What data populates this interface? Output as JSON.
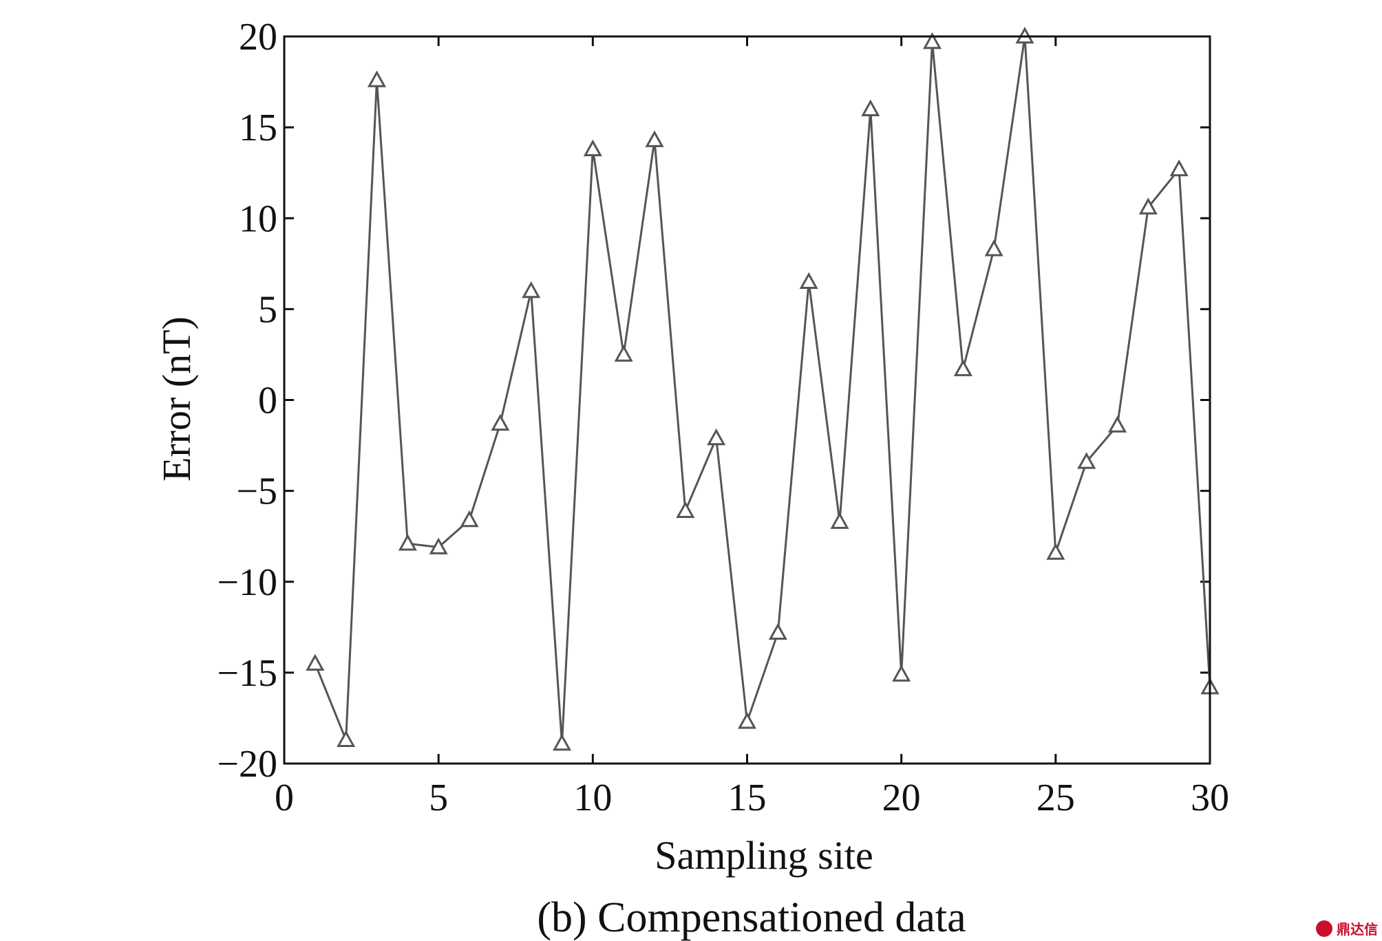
{
  "chart_data": {
    "type": "line",
    "title": "",
    "caption": "(b)  Compensationed data",
    "xlabel": "Sampling site",
    "ylabel": "Error (nT)",
    "xlim": [
      0,
      30
    ],
    "ylim": [
      -20,
      20
    ],
    "xticks": [
      0,
      5,
      10,
      15,
      20,
      25,
      30
    ],
    "yticks": [
      -20,
      -15,
      -10,
      -5,
      0,
      5,
      10,
      15,
      20
    ],
    "xtick_labels": [
      "0",
      "5",
      "10",
      "15",
      "20",
      "25",
      "30"
    ],
    "ytick_labels": [
      "−20",
      "−15",
      "−10",
      "−5",
      "0",
      "5",
      "10",
      "15",
      "20"
    ],
    "grid": false,
    "marker": "triangle-open",
    "series": [
      {
        "x": [
          1,
          2,
          3,
          4,
          5,
          6,
          7,
          8,
          9,
          10,
          11,
          12,
          13,
          14,
          15,
          16,
          17,
          18,
          19,
          20,
          21,
          22,
          23,
          24,
          25,
          26,
          27,
          28,
          29,
          30
        ],
        "values": [
          -14.5,
          -18.7,
          17.6,
          -7.9,
          -8.1,
          -6.6,
          -1.3,
          6.0,
          -18.9,
          13.8,
          2.5,
          14.3,
          -6.1,
          -2.1,
          -17.7,
          -12.8,
          6.5,
          -6.7,
          16.0,
          -15.1,
          19.7,
          1.7,
          8.3,
          20.0,
          -8.4,
          -3.4,
          -1.4,
          10.6,
          12.7,
          -15.8
        ]
      }
    ],
    "colors": {
      "line": "#555555",
      "marker_fill": "#ffffff",
      "axes": "#111111"
    }
  },
  "watermark": {
    "text": "鼎达信",
    "color": "#c8102e"
  }
}
